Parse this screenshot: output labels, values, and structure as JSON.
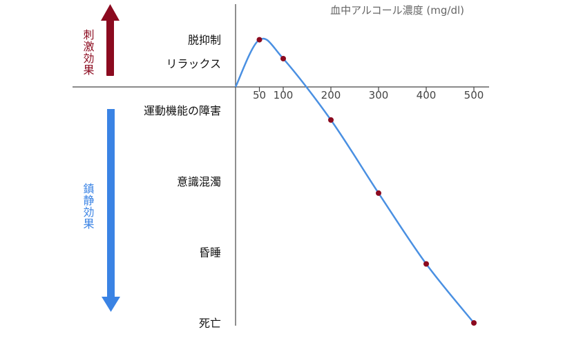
{
  "colors": {
    "stimulation": "#8b0a1f",
    "sedation": "#3a83e4",
    "curve": "#4a90e2",
    "points": "#8b0a1f",
    "axis": "#444444"
  },
  "chart_data": {
    "type": "line",
    "title": "",
    "xlabel": "血中アルコール濃度 (mg/dl)",
    "ylabel": "",
    "xlim": [
      0,
      500
    ],
    "x_ticks": [
      "50",
      "100",
      "200",
      "300",
      "400",
      "500"
    ],
    "x_tick_values": [
      50,
      100,
      200,
      300,
      400,
      500
    ],
    "y_levels": [
      {
        "label": "脱抑制",
        "level": 2
      },
      {
        "label": "リラックス",
        "level": 1
      },
      {
        "label": "運動機能の障害",
        "level": -1
      },
      {
        "label": "意識混濁",
        "level": -4
      },
      {
        "label": "昏睡",
        "level": -7
      },
      {
        "label": "死亡",
        "level": -10
      }
    ],
    "side_labels": {
      "stimulation": "刺激効果",
      "sedation": "鎮静効果"
    },
    "series": [
      {
        "points": [
          {
            "x": 0,
            "y": 0
          },
          {
            "x": 50,
            "y": 2
          },
          {
            "x": 100,
            "y": 1.2
          },
          {
            "x": 200,
            "y": -1.4
          },
          {
            "x": 300,
            "y": -4.5
          },
          {
            "x": 400,
            "y": -7.5
          },
          {
            "x": 500,
            "y": -10
          }
        ],
        "markers": [
          50,
          100,
          200,
          300,
          400,
          500
        ]
      }
    ],
    "grid": false
  }
}
